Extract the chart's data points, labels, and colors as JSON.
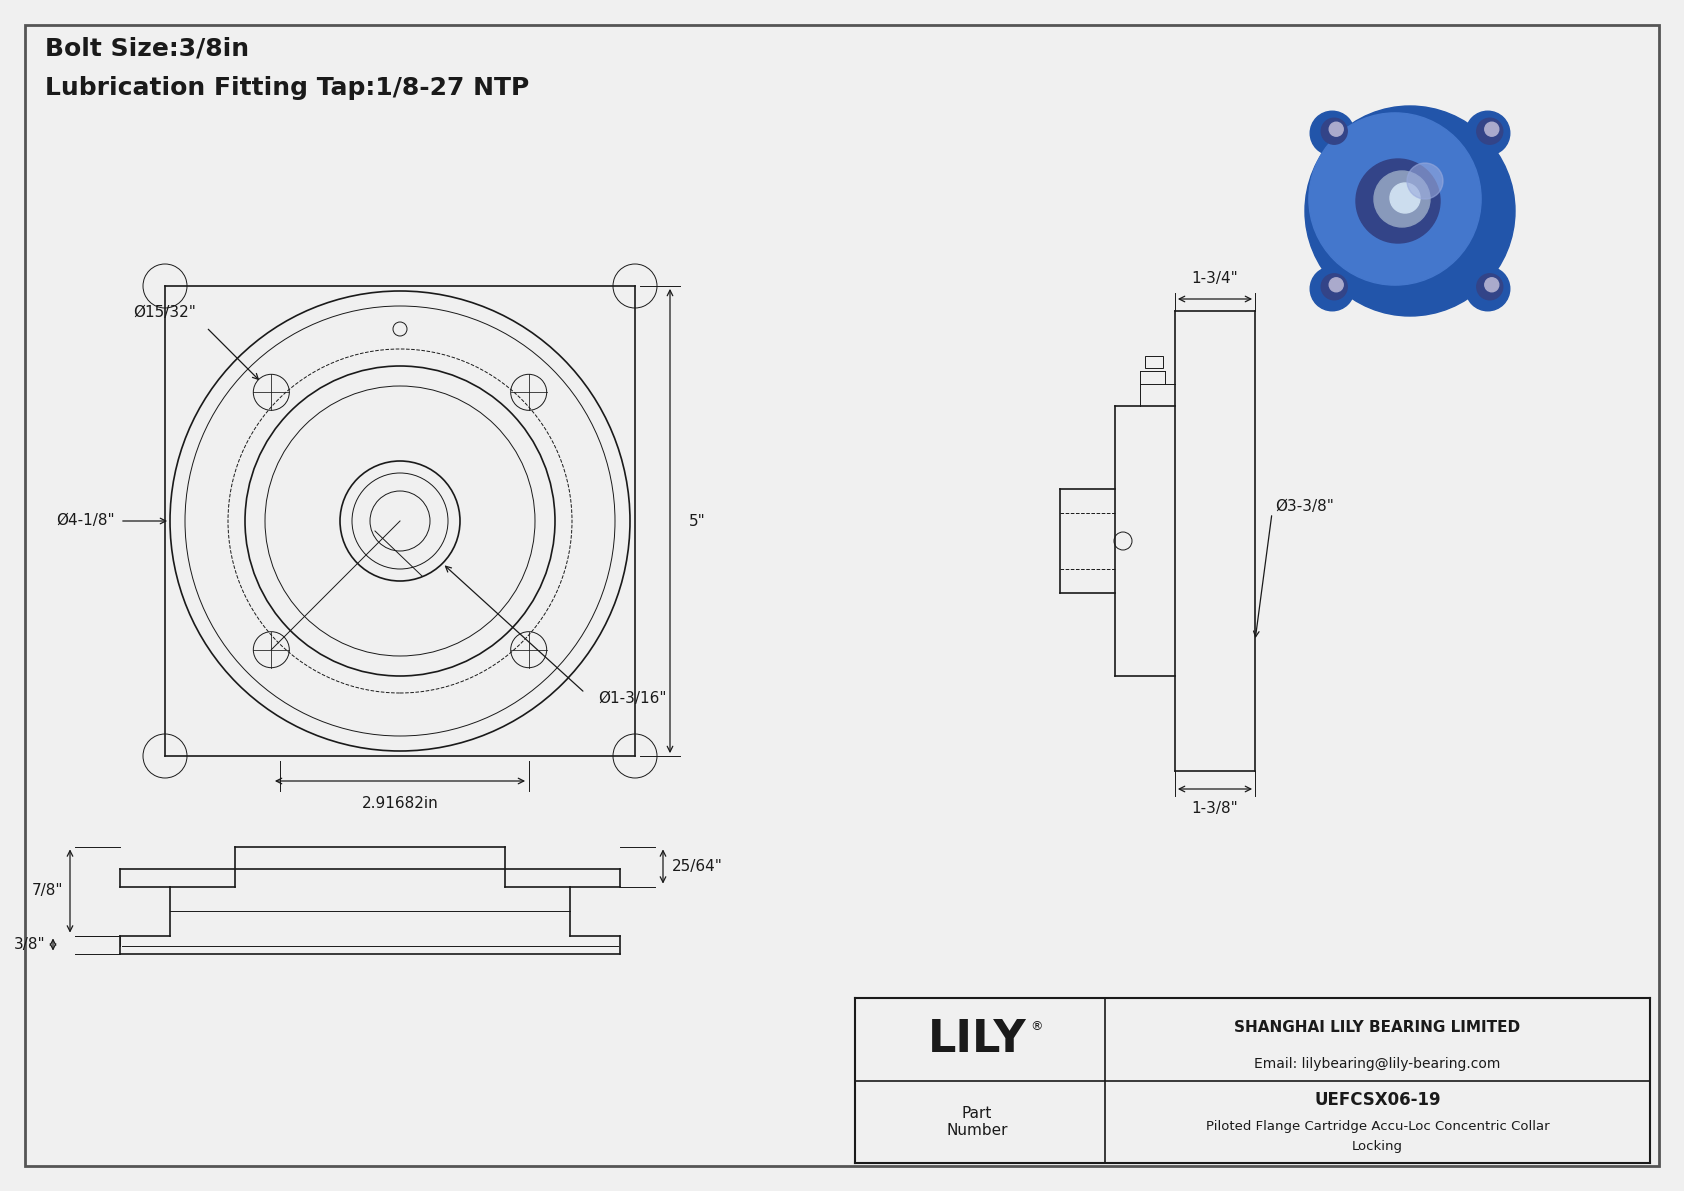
{
  "bg_color": "#f0f0f0",
  "border_color": "#333333",
  "line_color": "#1a1a1a",
  "dim_color": "#1a1a1a",
  "title_line1": "Bolt Size:3/8in",
  "title_line2": "Lubrication Fitting Tap:1/8-27 NTP",
  "title_fontsize": 18,
  "dim_fontsize": 11,
  "label_fontsize": 10,
  "company": "SHANGHAI LILY BEARING LIMITED",
  "email": "Email: lilybearing@lily-bearing.com",
  "part_number": "UEFCSX06-19",
  "part_desc1": "Piloted Flange Cartridge Accu-Loc Concentric Collar",
  "part_desc2": "Locking",
  "part_label": "Part\nNumber",
  "lily_text": "LILY",
  "dims": {
    "bolt_hole_dia": "Ø15/32\"",
    "flange_dia": "Ø4-1/8\"",
    "bore_dia": "Ø1-3/16\"",
    "bolt_circle": "2.91682in",
    "height": "5\"",
    "side_width": "1-3/4\"",
    "side_dia": "Ø3-3/8\"",
    "side_bottom": "1-3/8\"",
    "bottom_left": "7/8\"",
    "bottom_right": "25/64\"",
    "bottom_depth": "3/8\""
  }
}
